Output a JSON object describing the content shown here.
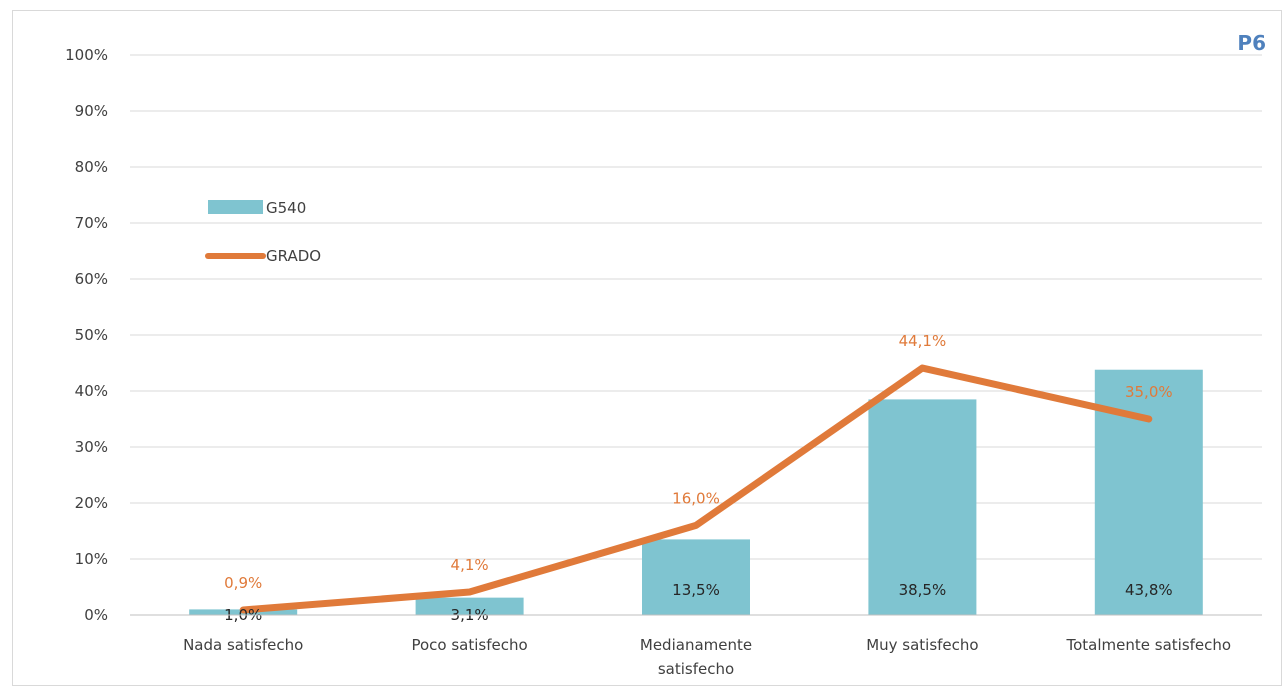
{
  "chart_data": {
    "type": "bar",
    "tag": "P6",
    "categories": [
      [
        "Nada satisfecho"
      ],
      [
        "Poco satisfecho"
      ],
      [
        "Medianamente",
        "satisfecho"
      ],
      [
        "Muy satisfecho"
      ],
      [
        "Totalmente satisfecho"
      ]
    ],
    "ylim": [
      0,
      100
    ],
    "yticks": [
      0,
      10,
      20,
      30,
      40,
      50,
      60,
      70,
      80,
      90,
      100
    ],
    "ytick_labels": [
      "0%",
      "10%",
      "20%",
      "30%",
      "40%",
      "50%",
      "60%",
      "70%",
      "80%",
      "90%",
      "100%"
    ],
    "grid": true,
    "legend_position": "upper-left",
    "series": [
      {
        "name": "G540",
        "kind": "bar",
        "color": "#7fc4d0",
        "values": [
          1.0,
          3.1,
          13.5,
          38.5,
          43.8
        ],
        "labels": [
          "1,0%",
          "3,1%",
          "13,5%",
          "38,5%",
          "43,8%"
        ]
      },
      {
        "name": "GRADO",
        "kind": "line",
        "color": "#e07a3a",
        "values": [
          0.9,
          4.1,
          16.0,
          44.1,
          35.0
        ],
        "labels": [
          "0,9%",
          "4,1%",
          "16,0%",
          "44,1%",
          "35,0%"
        ]
      }
    ]
  }
}
